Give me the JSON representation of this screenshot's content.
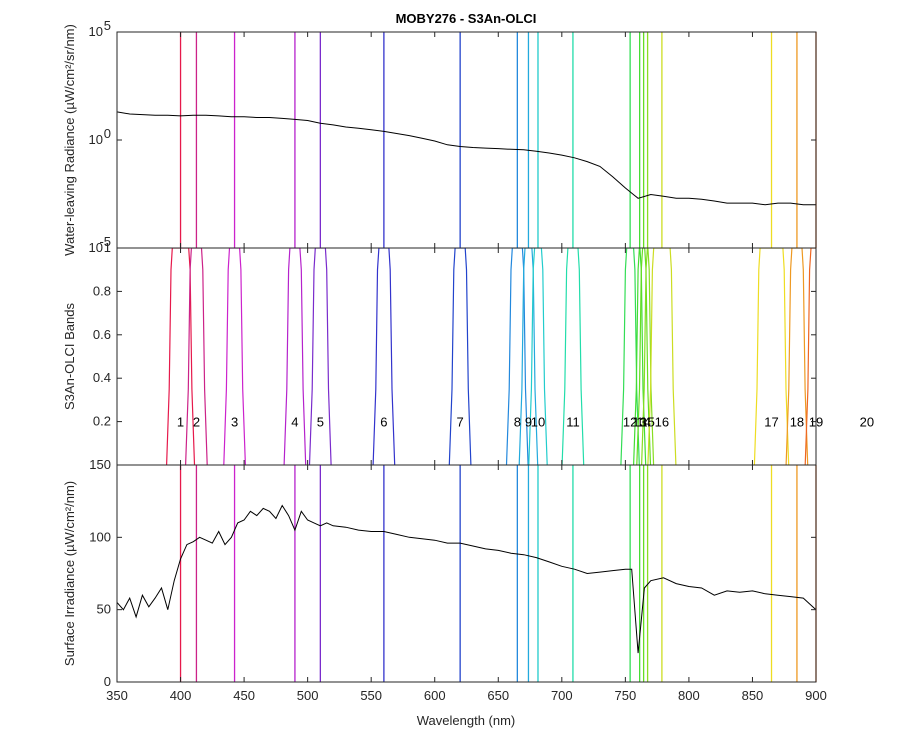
{
  "figure": {
    "title": "MOBY276 - S3An-OLCI",
    "xlabel": "Wavelength (nm)"
  },
  "chart_data": [
    {
      "panel": "top",
      "type": "line",
      "ylabel": "Water-leaving Radiance (µW/cm²/sr/nm)",
      "yscale": "log",
      "xlim": [
        350,
        900
      ],
      "ylim": [
        1e-05,
        100000.0
      ],
      "yticks": [
        {
          "v": 100000.0,
          "label": "10",
          "exp": "5"
        },
        {
          "v": 1,
          "label": "10",
          "exp": "0"
        },
        {
          "v": 1e-05,
          "label": "10",
          "exp": "-5"
        }
      ],
      "series": [
        {
          "line_color": "#000000",
          "x": [
            350,
            360,
            370,
            380,
            390,
            400,
            410,
            420,
            430,
            440,
            450,
            460,
            470,
            480,
            490,
            500,
            510,
            520,
            530,
            540,
            550,
            560,
            570,
            580,
            590,
            600,
            610,
            620,
            630,
            640,
            650,
            660,
            670,
            680,
            690,
            700,
            710,
            720,
            730,
            740,
            750,
            760,
            770,
            780,
            790,
            800,
            810,
            820,
            830,
            840,
            850,
            860,
            870,
            880,
            890,
            900
          ],
          "y": [
            20,
            16,
            15,
            14,
            14,
            13,
            14,
            14,
            13,
            12,
            12,
            11,
            11,
            10,
            9,
            8,
            6,
            5,
            4,
            3.5,
            3,
            2.5,
            2,
            1.6,
            1.2,
            0.9,
            0.6,
            0.5,
            0.45,
            0.42,
            0.4,
            0.37,
            0.35,
            0.3,
            0.25,
            0.2,
            0.15,
            0.1,
            0.06,
            0.02,
            0.006,
            0.002,
            0.003,
            0.0025,
            0.002,
            0.002,
            0.0018,
            0.0015,
            0.0012,
            0.0012,
            0.0012,
            0.001,
            0.0012,
            0.0012,
            0.001,
            0.001
          ]
        }
      ]
    },
    {
      "panel": "middle",
      "type": "line",
      "ylabel": "S3An-OLCI Bands",
      "xlim": [
        350,
        900
      ],
      "ylim": [
        0,
        1
      ],
      "yticks": [
        {
          "v": 0.2,
          "label": "0.2"
        },
        {
          "v": 0.4,
          "label": "0.4"
        },
        {
          "v": 0.6,
          "label": "0.6"
        },
        {
          "v": 0.8,
          "label": "0.8"
        },
        {
          "v": 1,
          "label": "1"
        }
      ],
      "band_label_y": 0.2,
      "bands": [
        {
          "label": "1",
          "center": 400,
          "width": 15,
          "color": "#e6194b"
        },
        {
          "label": "2",
          "center": 412.5,
          "width": 10,
          "color": "#cc2288"
        },
        {
          "label": "3",
          "center": 442.5,
          "width": 10,
          "color": "#cc22cc"
        },
        {
          "label": "4",
          "center": 490,
          "width": 10,
          "color": "#b522cc"
        },
        {
          "label": "5",
          "center": 510,
          "width": 10,
          "color": "#7a2bcc"
        },
        {
          "label": "6",
          "center": 560,
          "width": 10,
          "color": "#3333cc"
        },
        {
          "label": "7",
          "center": 620,
          "width": 10,
          "color": "#2244cc"
        },
        {
          "label": "8",
          "center": 665,
          "width": 10,
          "color": "#2288dd"
        },
        {
          "label": "9",
          "center": 673.75,
          "width": 7.5,
          "color": "#22aadd"
        },
        {
          "label": "10",
          "center": 681.25,
          "width": 7.5,
          "color": "#22cccc"
        },
        {
          "label": "11",
          "center": 708.75,
          "width": 10,
          "color": "#22ddaa"
        },
        {
          "label": "12",
          "center": 753.75,
          "width": 7.5,
          "color": "#33dd55"
        },
        {
          "label": "13",
          "center": 761.25,
          "width": 2.5,
          "color": "#44dd33"
        },
        {
          "label": "14",
          "center": 764.375,
          "width": 3.75,
          "color": "#66dd22"
        },
        {
          "label": "15",
          "center": 767.5,
          "width": 2.5,
          "color": "#88dd22"
        },
        {
          "label": "16",
          "center": 778.75,
          "width": 15,
          "color": "#ccdd22"
        },
        {
          "label": "17",
          "center": 865,
          "width": 20,
          "color": "#eedd22"
        },
        {
          "label": "18",
          "center": 885,
          "width": 10,
          "color": "#ee9922"
        },
        {
          "label": "19",
          "center": 900,
          "width": 10,
          "color": "#ee6622"
        },
        {
          "label": "20",
          "center": 940,
          "width": 20,
          "color": "#dd3311"
        }
      ]
    },
    {
      "panel": "bottom",
      "type": "line",
      "ylabel": "Surface Irradiance (µW/cm²/nm)",
      "xlim": [
        350,
        900
      ],
      "ylim": [
        0,
        150
      ],
      "yticks": [
        {
          "v": 0,
          "label": "0"
        },
        {
          "v": 50,
          "label": "50"
        },
        {
          "v": 100,
          "label": "100"
        },
        {
          "v": 150,
          "label": "150"
        }
      ],
      "xticks": [
        350,
        400,
        450,
        500,
        550,
        600,
        650,
        700,
        750,
        800,
        850,
        900
      ],
      "series": [
        {
          "line_color": "#000000",
          "x": [
            350,
            355,
            360,
            365,
            370,
            375,
            380,
            385,
            390,
            395,
            400,
            405,
            410,
            415,
            420,
            425,
            430,
            435,
            440,
            445,
            450,
            455,
            460,
            465,
            470,
            475,
            480,
            485,
            490,
            495,
            500,
            505,
            510,
            515,
            520,
            530,
            540,
            550,
            560,
            570,
            580,
            590,
            600,
            610,
            620,
            630,
            640,
            650,
            660,
            670,
            680,
            690,
            700,
            710,
            720,
            730,
            740,
            750,
            755,
            760,
            765,
            770,
            780,
            790,
            800,
            810,
            820,
            830,
            840,
            850,
            860,
            870,
            880,
            890,
            900
          ],
          "y": [
            55,
            50,
            58,
            45,
            60,
            52,
            58,
            65,
            50,
            70,
            85,
            95,
            97,
            100,
            98,
            96,
            104,
            95,
            100,
            110,
            112,
            118,
            115,
            120,
            118,
            113,
            122,
            115,
            105,
            118,
            112,
            110,
            108,
            110,
            108,
            107,
            105,
            104,
            104,
            102,
            100,
            99,
            98,
            96,
            96,
            94,
            92,
            91,
            89,
            88,
            86,
            83,
            80,
            78,
            75,
            76,
            77,
            78,
            78,
            20,
            65,
            70,
            72,
            68,
            66,
            65,
            60,
            63,
            62,
            63,
            61,
            60,
            59,
            58,
            50
          ]
        }
      ]
    }
  ]
}
